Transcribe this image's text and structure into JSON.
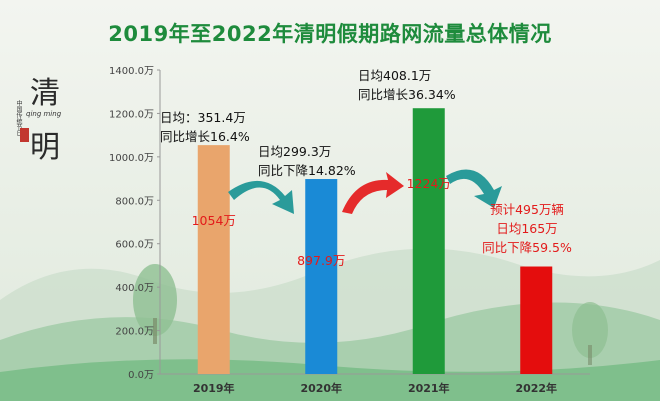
{
  "title": "2019年至2022年清明假期路网流量总体情况",
  "logo": {
    "char_top": "清",
    "char_bottom": "明",
    "small_text": "中国传统节日",
    "pinyin": "qing ming"
  },
  "colors": {
    "title": "#1e8b3c",
    "bar_2019": "#e9a56c",
    "bar_2020": "#1a8ad6",
    "bar_2021": "#1f9a3a",
    "bar_2022": "#e40d0d",
    "arrow_teal": "#2a9b9a",
    "arrow_red": "#e52b2b",
    "label_red": "#e31b1b"
  },
  "chart_data": {
    "type": "bar",
    "categories": [
      "2019年",
      "2020年",
      "2021年",
      "2022年"
    ],
    "values": [
      1054,
      897.9,
      1224,
      495
    ],
    "ylim": [
      0,
      1400
    ],
    "yticks": [
      "0.0万",
      "200.0万",
      "400.0万",
      "600.0万",
      "800.0万",
      "1000.0万",
      "1200.0万",
      "1400.0万"
    ],
    "bar_labels": [
      "1054万",
      "897.9万",
      "1224万",
      ""
    ],
    "grid": false
  },
  "annotations": {
    "y2019": [
      "日均：351.4万",
      "同比增长16.4%"
    ],
    "y2020": [
      "日均299.3万",
      "同比下降14.82%"
    ],
    "y2021": [
      "日均408.1万",
      "同比增长36.34%"
    ],
    "y2022": [
      "预计495万辆",
      "日均165万",
      "同比下降59.5%"
    ]
  }
}
